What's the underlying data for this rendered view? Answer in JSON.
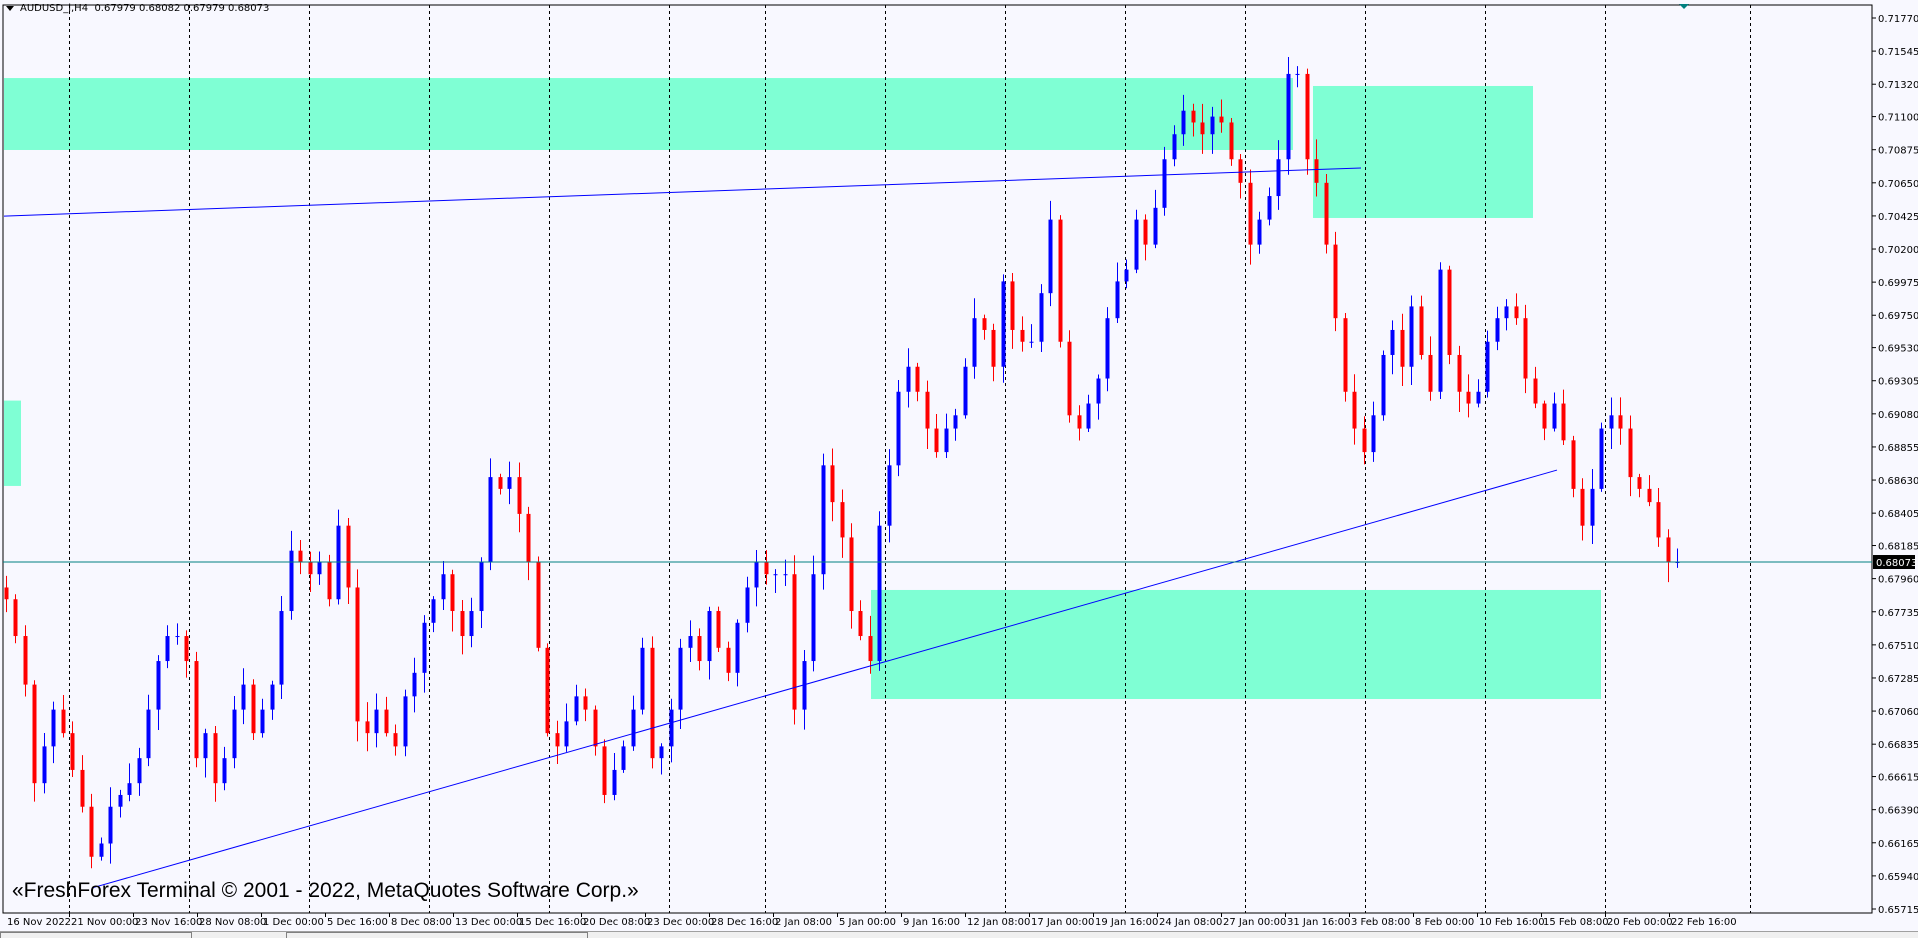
{
  "header": {
    "symbol_timeframe": "AUDUSD_i,H4",
    "ohlc": "0.67979 0.68082 0.67979 0.68073"
  },
  "watermark": "«FreshForex Terminal © 2001 - 2022, MetaQuotes Software Corp.»",
  "colors": {
    "background": "#F8F8FF",
    "bull_candle": "#0000FF",
    "bear_candle": "#FF0000",
    "zone_fill": "#7FFFD4",
    "trendline": "#0000FF",
    "bid_line": "#008080",
    "grid": "#000000"
  },
  "chart_data": {
    "type": "candlestick",
    "symbol": "AUDUSD_i",
    "timeframe": "H4",
    "grid": true,
    "ylim": [
      0.65715,
      0.7177
    ],
    "y_ticks": [
      "0.71770",
      "0.71545",
      "0.71320",
      "0.71100",
      "0.70875",
      "0.70650",
      "0.70425",
      "0.70200",
      "0.69975",
      "0.69750",
      "0.69530",
      "0.69305",
      "0.69080",
      "0.68855",
      "0.68630",
      "0.68405",
      "0.68185",
      "0.67960",
      "0.67735",
      "0.67510",
      "0.67285",
      "0.67060",
      "0.66835",
      "0.66615",
      "0.66390",
      "0.66165",
      "0.65940",
      "0.65715"
    ],
    "x_ticks": [
      "16 Nov 2022",
      "21 Nov 00:00",
      "23 Nov 16:00",
      "28 Nov 08:00",
      "1 Dec 00:00",
      "5 Dec 16:00",
      "8 Dec 08:00",
      "13 Dec 00:00",
      "15 Dec 16:00",
      "20 Dec 08:00",
      "23 Dec 00:00",
      "28 Dec 16:00",
      "2 Jan 08:00",
      "5 Jan 00:00",
      "9 Jan 16:00",
      "12 Jan 08:00",
      "17 Jan 00:00",
      "19 Jan 16:00",
      "24 Jan 08:00",
      "27 Jan 00:00",
      "31 Jan 16:00",
      "3 Feb 08:00",
      "8 Feb 00:00",
      "10 Feb 16:00",
      "15 Feb 08:00",
      "20 Feb 00:00",
      "22 Feb 16:00"
    ],
    "current_price": "0.68073",
    "closes": [
      0.6782,
      0.6757,
      0.6724,
      0.6657,
      0.6682,
      0.6707,
      0.6691,
      0.6666,
      0.6641,
      0.6607,
      0.6616,
      0.6641,
      0.6649,
      0.6657,
      0.6674,
      0.6707,
      0.674,
      0.6757,
      0.6757,
      0.674,
      0.6674,
      0.6691,
      0.6657,
      0.6674,
      0.6707,
      0.6724,
      0.6691,
      0.6707,
      0.6724,
      0.6774,
      0.6815,
      0.6807,
      0.6799,
      0.6807,
      0.6782,
      0.6832,
      0.679,
      0.6699,
      0.6691,
      0.6707,
      0.6691,
      0.6682,
      0.6716,
      0.6732,
      0.6766,
      0.6782,
      0.6799,
      0.6774,
      0.6757,
      0.6774,
      0.6807,
      0.6865,
      0.6857,
      0.6865,
      0.684,
      0.6807,
      0.6749,
      0.6691,
      0.6682,
      0.6699,
      0.6716,
      0.6707,
      0.6682,
      0.6649,
      0.6666,
      0.6682,
      0.6707,
      0.6749,
      0.6674,
      0.6682,
      0.6707,
      0.6749,
      0.6757,
      0.674,
      0.6774,
      0.6749,
      0.6732,
      0.6766,
      0.679,
      0.6807,
      0.6799,
      0.6799,
      0.6799,
      0.6707,
      0.674,
      0.6799,
      0.6873,
      0.6848,
      0.6824,
      0.6774,
      0.6757,
      0.674,
      0.6832,
      0.6873,
      0.6923,
      0.694,
      0.6923,
      0.6898,
      0.6882,
      0.6898,
      0.6907,
      0.694,
      0.6973,
      0.6965,
      0.694,
      0.6998,
      0.6965,
      0.6957,
      0.6957,
      0.699,
      0.704,
      0.6957,
      0.6907,
      0.6898,
      0.6915,
      0.6932,
      0.6973,
      0.6998,
      0.7006,
      0.704,
      0.7023,
      0.7048,
      0.7081,
      0.7098,
      0.7114,
      0.7106,
      0.7098,
      0.711,
      0.7106,
      0.7081,
      0.7065,
      0.7023,
      0.704,
      0.7056,
      0.7081,
      0.7139,
      0.7139,
      0.7081,
      0.7065,
      0.7023,
      0.6973,
      0.6923,
      0.6898,
      0.6882,
      0.6907,
      0.6948,
      0.6965,
      0.694,
      0.6981,
      0.6948,
      0.6923,
      0.7006,
      0.6948,
      0.6923,
      0.6915,
      0.6923,
      0.6957,
      0.6973,
      0.6981,
      0.6973,
      0.6932,
      0.6915,
      0.6898,
      0.6915,
      0.689,
      0.6857,
      0.6832,
      0.6857,
      0.6898,
      0.6907,
      0.6898,
      0.6865,
      0.6857,
      0.6848,
      0.6824,
      0.6807,
      0.68073
    ],
    "zones": [
      {
        "top": 0.71362,
        "bottom": 0.70873
      },
      {
        "top": 0.71308,
        "bottom": 0.70411
      },
      {
        "top": 0.6917,
        "bottom": 0.6859
      },
      {
        "top": 0.67883,
        "bottom": 0.67142
      }
    ],
    "trendlines": [
      {
        "start": 0.70424,
        "end": 0.70751
      },
      {
        "start": 0.65858,
        "end": 0.68698
      }
    ]
  }
}
